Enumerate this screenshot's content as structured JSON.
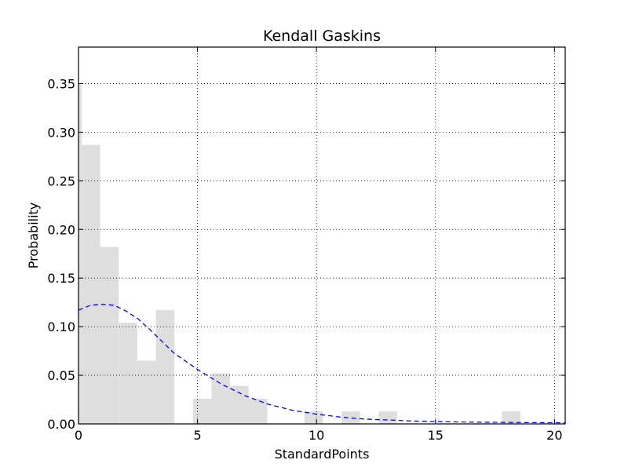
{
  "chart_data": {
    "type": "bar",
    "title": "Kendall Gaskins",
    "xlabel": "StandardPoints",
    "ylabel": "Probability",
    "xlim": [
      0,
      20.45
    ],
    "ylim": [
      0,
      0.3875
    ],
    "x_ticks": [
      0,
      5,
      10,
      15,
      20
    ],
    "y_ticks": [
      0.0,
      0.05,
      0.1,
      0.15,
      0.2,
      0.25,
      0.3,
      0.35
    ],
    "x_tick_labels": [
      "0",
      "5",
      "10",
      "15",
      "20"
    ],
    "y_tick_labels": [
      "0.00",
      "0.05",
      "0.10",
      "0.15",
      "0.20",
      "0.25",
      "0.30",
      "0.35"
    ],
    "grid": true,
    "series": [
      {
        "type": "histogram",
        "color": "#dedede",
        "bins": [
          {
            "x0": 0.0,
            "x1": 0.13,
            "value": 0.349
          },
          {
            "x0": 0.13,
            "x1": 0.91,
            "value": 0.287
          },
          {
            "x0": 0.91,
            "x1": 1.69,
            "value": 0.182
          },
          {
            "x0": 1.69,
            "x1": 2.47,
            "value": 0.104
          },
          {
            "x0": 2.47,
            "x1": 3.25,
            "value": 0.065
          },
          {
            "x0": 3.25,
            "x1": 4.03,
            "value": 0.117
          },
          {
            "x0": 4.03,
            "x1": 4.81,
            "value": 0.0
          },
          {
            "x0": 4.81,
            "x1": 5.59,
            "value": 0.026
          },
          {
            "x0": 5.59,
            "x1": 6.37,
            "value": 0.052
          },
          {
            "x0": 6.37,
            "x1": 7.15,
            "value": 0.039
          },
          {
            "x0": 7.15,
            "x1": 7.93,
            "value": 0.026
          },
          {
            "x0": 9.49,
            "x1": 10.27,
            "value": 0.013
          },
          {
            "x0": 11.05,
            "x1": 11.83,
            "value": 0.013
          },
          {
            "x0": 12.61,
            "x1": 13.39,
            "value": 0.013
          },
          {
            "x0": 17.79,
            "x1": 18.57,
            "value": 0.013
          }
        ]
      },
      {
        "type": "line",
        "style": "dashed",
        "color": "#0000ff",
        "x": [
          0,
          0.5,
          1,
          1.5,
          2,
          2.5,
          3,
          3.5,
          4,
          5,
          6,
          7,
          8,
          9,
          10,
          11,
          12,
          13,
          14,
          15,
          16,
          17,
          18,
          19,
          20,
          20.45
        ],
        "y": [
          0.117,
          0.122,
          0.123,
          0.122,
          0.116,
          0.108,
          0.097,
          0.085,
          0.073,
          0.056,
          0.041,
          0.029,
          0.02,
          0.014,
          0.01,
          0.007,
          0.005,
          0.004,
          0.003,
          0.0025,
          0.002,
          0.0017,
          0.0015,
          0.0013,
          0.0012,
          0.0011
        ]
      }
    ]
  }
}
